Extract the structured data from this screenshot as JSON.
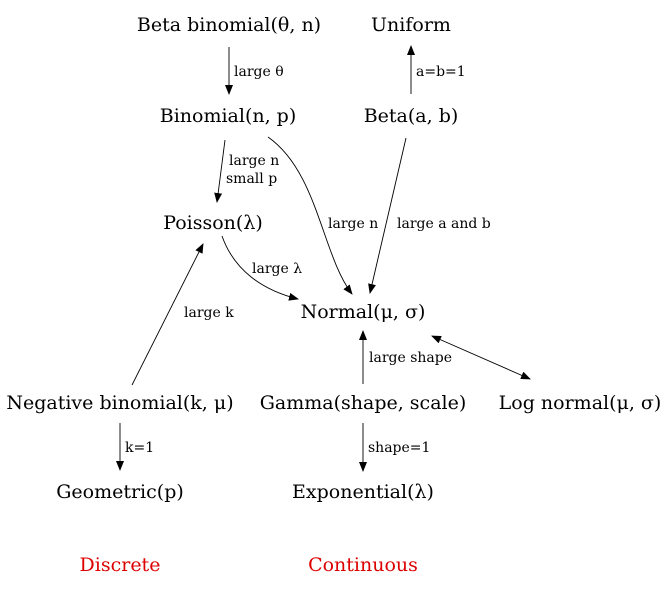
{
  "nodes": {
    "beta_binomial": "Beta binomial(θ, n)",
    "uniform": "Uniform",
    "binomial": "Binomial(n, p)",
    "beta": "Beta(a, b)",
    "poisson": "Poisson(λ)",
    "normal": "Normal(μ, σ)",
    "negative_binomial": "Negative binomial(k, μ)",
    "gamma": "Gamma(shape, scale)",
    "log_normal": "Log normal(μ, σ)",
    "geometric": "Geometric(p)",
    "exponential": "Exponential(λ)"
  },
  "edges": {
    "beta_binomial_to_binomial": "large θ",
    "beta_to_uniform": "a=b=1",
    "binomial_to_poisson_line1": "large n",
    "binomial_to_poisson_line2": "small p",
    "binomial_to_normal": "large n",
    "beta_to_normal": "large a and b",
    "poisson_to_normal": "large λ",
    "negative_binomial_to_poisson": "large k",
    "gamma_to_normal": "large shape",
    "negative_binomial_to_geometric": "k=1",
    "gamma_to_exponential": "shape=1"
  },
  "legend": {
    "discrete": "Discrete",
    "continuous": "Continuous",
    "color": "#dd0000"
  }
}
